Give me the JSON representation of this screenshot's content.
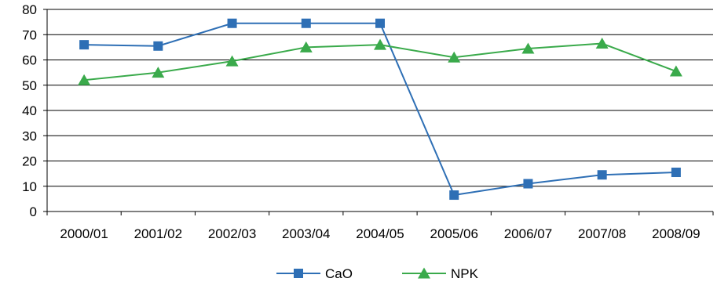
{
  "chart_data": {
    "type": "line",
    "categories": [
      "2000/01",
      "2001/02",
      "2002/03",
      "2003/04",
      "2004/05",
      "2005/06",
      "2006/07",
      "2007/08",
      "2008/09"
    ],
    "series": [
      {
        "name": "CaO",
        "values": [
          66,
          65.5,
          74.5,
          74.5,
          74.5,
          6.5,
          11,
          14.5,
          15.5
        ],
        "color": "#2e6fb5",
        "marker": "square"
      },
      {
        "name": "NPK",
        "values": [
          52,
          55,
          59.5,
          65,
          66,
          61,
          64.5,
          66.5,
          55.5
        ],
        "color": "#3aaa4b",
        "marker": "triangle"
      }
    ],
    "title": "",
    "xlabel": "",
    "ylabel": "",
    "ylim": [
      0,
      80
    ],
    "yticks": [
      0,
      10,
      20,
      30,
      40,
      50,
      60,
      70,
      80
    ],
    "grid": true,
    "legend_position": "bottom"
  }
}
